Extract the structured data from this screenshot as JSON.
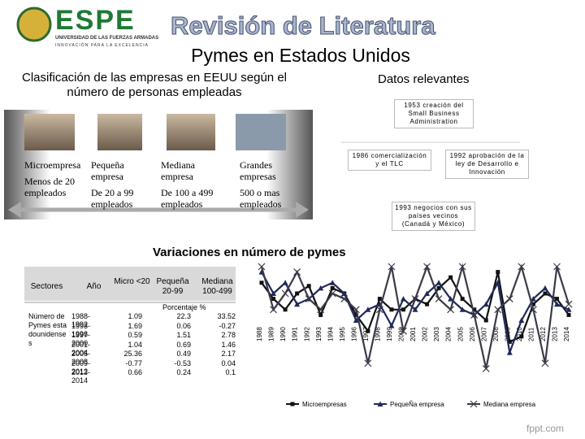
{
  "header": {
    "logo": "ESPE",
    "university": "UNIVERSIDAD DE LAS FUERZAS ARMADAS",
    "motto": "INNOVACIÓN PARA LA EXCELENCIA",
    "title": "Revisión de Literatura",
    "subtitle": "Pymes en Estados Unidos"
  },
  "classification": {
    "heading": "Clasificación de las empresas en EEUU según el número de personas empleadas",
    "types": [
      {
        "name": "Microempresa",
        "detail": "Menos de 20 empleados"
      },
      {
        "name": "Pequeña empresa",
        "detail": "De 20 a 99 empleados"
      },
      {
        "name": "Mediana empresa",
        "detail": "De 100 a 499 empleados"
      },
      {
        "name": "Grandes empresas",
        "detail": "500 o mas empleados"
      }
    ]
  },
  "facts": {
    "heading": "Datos relevantes",
    "items": [
      "1953 creación del Small Business Administration",
      "1986 comercialización y el TLC",
      "1992 aprobación de la ley de Desarrollo e Innovación",
      "1993 negocios con sus países vecinos (Canadá y México)"
    ]
  },
  "table": {
    "headers": [
      "Sectores",
      "Año",
      "Micro <20",
      "Pequeña 20-99",
      "Mediana 100-499"
    ],
    "unit": "Porcentaje %",
    "row_label": "Número de Pymes estadounidenses",
    "rows": [
      [
        "1988-1992",
        "1.09",
        "22.3",
        "33.52"
      ],
      [
        "1993-1996",
        "1.69",
        "0.06",
        "-0.27"
      ],
      [
        "1997-2000",
        "0.59",
        "1.51",
        "2.78"
      ],
      [
        "2001-2004",
        "1.04",
        "0.69",
        "1.46"
      ],
      [
        "2005-2008",
        "25.36",
        "0.49",
        "2.17"
      ],
      [
        "2009-2012",
        "-0.77",
        "-0.53",
        "0.04"
      ],
      [
        "2013-2014",
        "0.66",
        "0.24",
        "0.1"
      ]
    ]
  },
  "chart_data": {
    "type": "line",
    "title": "Variaciones en número de pymes",
    "categories": [
      "1988",
      "1989",
      "1990",
      "1991",
      "1992",
      "1993",
      "1994",
      "1995",
      "1996",
      "1997",
      "1998",
      "1999",
      "2000",
      "2001",
      "2002",
      "2003",
      "2004",
      "2005",
      "2006",
      "2007",
      "2008",
      "2009",
      "2010",
      "2011",
      "2012",
      "2013",
      "2014"
    ],
    "ylim": [
      0,
      100
    ],
    "series": [
      {
        "name": "Microempresas",
        "color": "#111111",
        "marker": "square",
        "values": [
          85,
          70,
          60,
          75,
          82,
          55,
          80,
          75,
          55,
          40,
          70,
          60,
          60,
          70,
          65,
          80,
          90,
          70,
          60,
          50,
          95,
          30,
          35,
          65,
          75,
          70,
          55
        ]
      },
      {
        "name": "PequeÑa empresa",
        "color": "#1f2a5a",
        "marker": "triangle",
        "values": [
          95,
          75,
          85,
          65,
          70,
          80,
          85,
          75,
          50,
          60,
          65,
          45,
          70,
          60,
          75,
          85,
          70,
          60,
          55,
          65,
          85,
          20,
          50,
          70,
          80,
          65,
          60
        ]
      },
      {
        "name": "Mediana empresa",
        "color": "#3a3a48",
        "marker": "x",
        "values": [
          100,
          60,
          75,
          95,
          70,
          60,
          75,
          70,
          60,
          10,
          60,
          100,
          40,
          70,
          100,
          70,
          60,
          100,
          55,
          5,
          60,
          70,
          100,
          60,
          10,
          100,
          65
        ]
      }
    ]
  },
  "footer": "fppt.com"
}
